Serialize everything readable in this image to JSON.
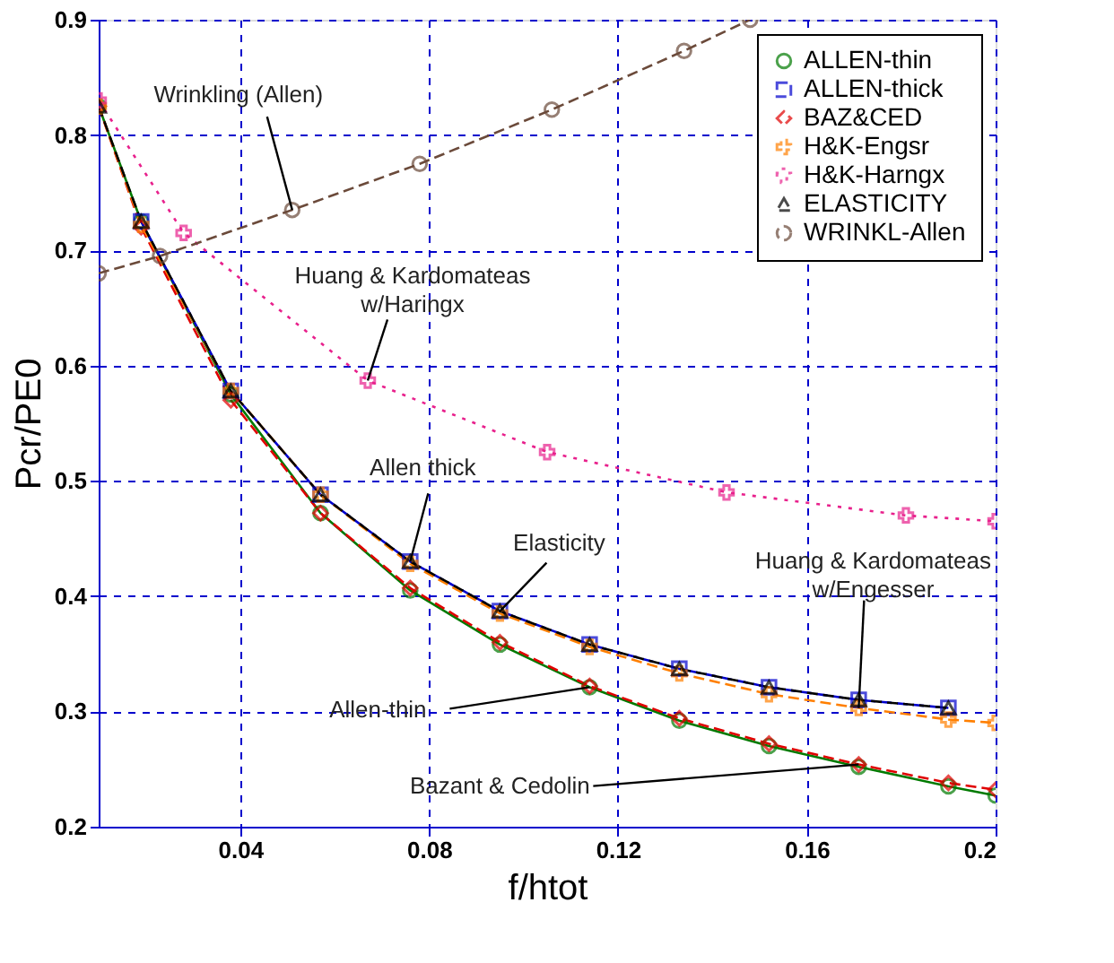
{
  "chart_data": {
    "type": "line",
    "xlabel": "f/htot",
    "ylabel": "Pcr/PE0",
    "xlim": [
      0.01,
      0.2
    ],
    "ylim": [
      0.2,
      0.9
    ],
    "xticks": [
      0.04,
      0.08,
      0.12,
      0.16,
      0.2
    ],
    "yticks": [
      0.2,
      0.3,
      0.4,
      0.5,
      0.6,
      0.7,
      0.8,
      0.9
    ],
    "grid": true,
    "legend": "top right",
    "series": [
      {
        "name": "ALLEN-thin",
        "color": "#007a00",
        "marker": "circle",
        "line_style": "solid",
        "x": [
          0.01,
          0.019,
          0.038,
          0.057,
          0.076,
          0.095,
          0.114,
          0.133,
          0.152,
          0.171,
          0.19,
          0.2
        ],
        "values": [
          0.825,
          0.725,
          0.575,
          0.472,
          0.405,
          0.358,
          0.321,
          0.292,
          0.27,
          0.252,
          0.235,
          0.227
        ]
      },
      {
        "name": "ALLEN-thick",
        "color": "#0000cc",
        "marker": "square",
        "line_style": "dashed",
        "x": [
          0.019,
          0.038,
          0.057,
          0.076,
          0.095,
          0.114,
          0.133,
          0.152,
          0.171,
          0.19
        ],
        "values": [
          0.725,
          0.578,
          0.488,
          0.43,
          0.387,
          0.358,
          0.337,
          0.321,
          0.31,
          0.303
        ]
      },
      {
        "name": "BAZ&CED",
        "color": "#e00000",
        "marker": "diamond",
        "line_style": "dashed",
        "x": [
          0.01,
          0.019,
          0.038,
          0.057,
          0.076,
          0.095,
          0.114,
          0.133,
          0.152,
          0.171,
          0.19,
          0.2
        ],
        "values": [
          0.825,
          0.72,
          0.57,
          0.472,
          0.407,
          0.36,
          0.322,
          0.294,
          0.272,
          0.254,
          0.238,
          0.232
        ]
      },
      {
        "name": "H&K-Engsr",
        "color": "#ff7f00",
        "marker": "cross",
        "line_style": "dashed",
        "x": [
          0.01,
          0.019,
          0.038,
          0.057,
          0.076,
          0.095,
          0.114,
          0.133,
          0.152,
          0.171,
          0.19,
          0.2
        ],
        "values": [
          0.825,
          0.722,
          0.578,
          0.488,
          0.428,
          0.385,
          0.356,
          0.333,
          0.315,
          0.303,
          0.293,
          0.29
        ]
      },
      {
        "name": "H&K-Harngx",
        "color": "#e8208c",
        "marker": "cross",
        "line_style": "dotted",
        "x": [
          0.01,
          0.028,
          0.067,
          0.105,
          0.143,
          0.181,
          0.2
        ],
        "values": [
          0.83,
          0.715,
          0.587,
          0.525,
          0.49,
          0.47,
          0.465
        ]
      },
      {
        "name": "ELASTICITY",
        "color": "#000000",
        "marker": "triangle",
        "line_style": "dashed",
        "x": [
          0.01,
          0.019,
          0.038,
          0.057,
          0.076,
          0.095,
          0.114,
          0.133,
          0.152,
          0.171,
          0.19
        ],
        "values": [
          0.825,
          0.725,
          0.578,
          0.488,
          0.43,
          0.387,
          0.358,
          0.337,
          0.321,
          0.31,
          0.303
        ]
      },
      {
        "name": "WRINKL-Allen",
        "color": "#6b4a3a",
        "marker": "circle",
        "line_style": "dashed",
        "x": [
          0.01,
          0.023,
          0.051,
          0.078,
          0.106,
          0.134,
          0.148
        ],
        "values": [
          0.68,
          0.695,
          0.735,
          0.775,
          0.822,
          0.873,
          0.9
        ]
      }
    ],
    "annotations": [
      {
        "text": "Wrinkling (Allen)",
        "x": 0.051,
        "y": 0.735
      },
      {
        "text": "Huang & Kardomateas\nw/Haringx",
        "x": 0.067,
        "y": 0.587
      },
      {
        "text": "Allen thick",
        "x": 0.076,
        "y": 0.43
      },
      {
        "text": "Elasticity",
        "x": 0.095,
        "y": 0.387
      },
      {
        "text": "Huang & Kardomateas\nw/Engesser",
        "x": 0.171,
        "y": 0.303
      },
      {
        "text": "Allen-thin",
        "x": 0.114,
        "y": 0.321
      },
      {
        "text": "Bazant & Cedolin",
        "x": 0.171,
        "y": 0.254
      }
    ]
  }
}
